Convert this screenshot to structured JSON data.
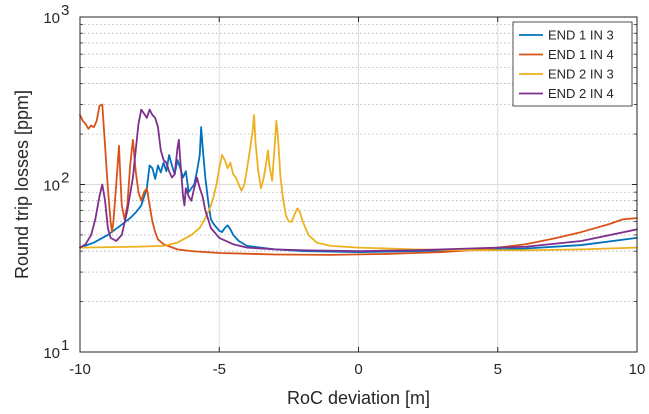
{
  "chart_data": {
    "type": "line",
    "title": "",
    "xlabel": "RoC deviation [m]",
    "ylabel": "Round trip losses [ppm]",
    "xlim": [
      -10,
      10
    ],
    "ylim": [
      10,
      1000
    ],
    "yscale": "log",
    "grid": true,
    "legend_position": "top-right",
    "x_ticks": [
      -10,
      -5,
      0,
      5,
      10
    ],
    "x_tick_labels": [
      "-10",
      "-5",
      "0",
      "5",
      "10"
    ],
    "y_ticks": [
      10,
      100,
      1000
    ],
    "y_tick_labels": [
      {
        "base": "10",
        "exp": "1"
      },
      {
        "base": "10",
        "exp": "2"
      },
      {
        "base": "10",
        "exp": "3"
      }
    ],
    "series": [
      {
        "name": "END 1 IN 3",
        "color": "#0072BD",
        "points": [
          [
            -10,
            42
          ],
          [
            -9.5,
            45
          ],
          [
            -9,
            50
          ],
          [
            -8.6,
            56
          ],
          [
            -8.2,
            63
          ],
          [
            -8,
            68
          ],
          [
            -7.8,
            75
          ],
          [
            -7.6,
            95
          ],
          [
            -7.5,
            130
          ],
          [
            -7.4,
            125
          ],
          [
            -7.3,
            108
          ],
          [
            -7.2,
            130
          ],
          [
            -7.1,
            118
          ],
          [
            -7,
            135
          ],
          [
            -6.9,
            120
          ],
          [
            -6.8,
            150
          ],
          [
            -6.7,
            130
          ],
          [
            -6.6,
            115
          ],
          [
            -6.5,
            140
          ],
          [
            -6.4,
            125
          ],
          [
            -6.3,
            110
          ],
          [
            -6.2,
            120
          ],
          [
            -6.1,
            90
          ],
          [
            -6,
            95
          ],
          [
            -5.9,
            100
          ],
          [
            -5.8,
            120
          ],
          [
            -5.7,
            150
          ],
          [
            -5.65,
            220
          ],
          [
            -5.6,
            170
          ],
          [
            -5.5,
            110
          ],
          [
            -5.4,
            80
          ],
          [
            -5.3,
            62
          ],
          [
            -5.2,
            58
          ],
          [
            -5,
            53
          ],
          [
            -4.9,
            52
          ],
          [
            -4.8,
            55
          ],
          [
            -4.7,
            57
          ],
          [
            -4.6,
            54
          ],
          [
            -4.5,
            50
          ],
          [
            -4.3,
            46
          ],
          [
            -4,
            43
          ],
          [
            -3,
            41
          ],
          [
            -2,
            40
          ],
          [
            0,
            39.5
          ],
          [
            2,
            40
          ],
          [
            4,
            40.5
          ],
          [
            6,
            41.5
          ],
          [
            8,
            43.5
          ],
          [
            10,
            48
          ]
        ]
      },
      {
        "name": "END 1 IN 4",
        "color": "#D95319",
        "points": [
          [
            -10,
            260
          ],
          [
            -9.9,
            240
          ],
          [
            -9.8,
            230
          ],
          [
            -9.7,
            215
          ],
          [
            -9.6,
            225
          ],
          [
            -9.5,
            220
          ],
          [
            -9.4,
            240
          ],
          [
            -9.3,
            295
          ],
          [
            -9.2,
            300
          ],
          [
            -9.1,
            170
          ],
          [
            -9,
            95
          ],
          [
            -8.9,
            60
          ],
          [
            -8.85,
            52
          ],
          [
            -8.8,
            60
          ],
          [
            -8.7,
            100
          ],
          [
            -8.6,
            170
          ],
          [
            -8.55,
            110
          ],
          [
            -8.5,
            75
          ],
          [
            -8.4,
            62
          ],
          [
            -8.3,
            75
          ],
          [
            -8.2,
            130
          ],
          [
            -8.1,
            185
          ],
          [
            -8,
            120
          ],
          [
            -7.9,
            90
          ],
          [
            -7.8,
            80
          ],
          [
            -7.7,
            90
          ],
          [
            -7.6,
            95
          ],
          [
            -7.5,
            75
          ],
          [
            -7.4,
            60
          ],
          [
            -7.3,
            52
          ],
          [
            -7.2,
            47
          ],
          [
            -7,
            44
          ],
          [
            -6.5,
            41
          ],
          [
            -6,
            40
          ],
          [
            -5,
            39
          ],
          [
            -3,
            38.2
          ],
          [
            -1,
            38
          ],
          [
            1,
            38.5
          ],
          [
            2,
            39
          ],
          [
            3,
            39.5
          ],
          [
            4,
            40.5
          ],
          [
            5,
            42
          ],
          [
            6,
            44
          ],
          [
            7,
            47.5
          ],
          [
            8,
            52
          ],
          [
            9,
            58
          ],
          [
            9.5,
            62
          ],
          [
            10,
            63
          ]
        ]
      },
      {
        "name": "END 2 IN 3",
        "color": "#EDB120",
        "points": [
          [
            -10,
            42
          ],
          [
            -8,
            42.5
          ],
          [
            -7,
            43
          ],
          [
            -6.5,
            45
          ],
          [
            -6,
            50
          ],
          [
            -5.7,
            55
          ],
          [
            -5.5,
            63
          ],
          [
            -5.3,
            75
          ],
          [
            -5.2,
            85
          ],
          [
            -5.1,
            100
          ],
          [
            -5,
            125
          ],
          [
            -4.9,
            150
          ],
          [
            -4.8,
            140
          ],
          [
            -4.7,
            125
          ],
          [
            -4.6,
            135
          ],
          [
            -4.5,
            115
          ],
          [
            -4.4,
            110
          ],
          [
            -4.3,
            100
          ],
          [
            -4.2,
            92
          ],
          [
            -4.1,
            100
          ],
          [
            -4,
            125
          ],
          [
            -3.9,
            160
          ],
          [
            -3.8,
            210
          ],
          [
            -3.75,
            260
          ],
          [
            -3.7,
            180
          ],
          [
            -3.6,
            120
          ],
          [
            -3.5,
            95
          ],
          [
            -3.4,
            110
          ],
          [
            -3.3,
            140
          ],
          [
            -3.25,
            160
          ],
          [
            -3.2,
            130
          ],
          [
            -3.1,
            105
          ],
          [
            -3,
            180
          ],
          [
            -2.95,
            240
          ],
          [
            -2.9,
            200
          ],
          [
            -2.8,
            110
          ],
          [
            -2.7,
            80
          ],
          [
            -2.6,
            65
          ],
          [
            -2.5,
            60
          ],
          [
            -2.4,
            60
          ],
          [
            -2.3,
            66
          ],
          [
            -2.2,
            72
          ],
          [
            -2.1,
            68
          ],
          [
            -2,
            60
          ],
          [
            -1.8,
            50
          ],
          [
            -1.5,
            45
          ],
          [
            -1,
            43
          ],
          [
            0,
            42
          ],
          [
            2,
            41
          ],
          [
            4,
            40.5
          ],
          [
            6,
            40.5
          ],
          [
            8,
            41
          ],
          [
            10,
            42
          ]
        ]
      },
      {
        "name": "END 2 IN 4",
        "color": "#7E2F8E",
        "points": [
          [
            -10,
            42
          ],
          [
            -9.8,
            44
          ],
          [
            -9.6,
            50
          ],
          [
            -9.45,
            62
          ],
          [
            -9.3,
            85
          ],
          [
            -9.2,
            100
          ],
          [
            -9.1,
            80
          ],
          [
            -9,
            55
          ],
          [
            -8.9,
            48
          ],
          [
            -8.7,
            46
          ],
          [
            -8.5,
            50
          ],
          [
            -8.3,
            70
          ],
          [
            -8.1,
            110
          ],
          [
            -8,
            160
          ],
          [
            -7.9,
            230
          ],
          [
            -7.8,
            280
          ],
          [
            -7.7,
            265
          ],
          [
            -7.6,
            250
          ],
          [
            -7.5,
            280
          ],
          [
            -7.4,
            260
          ],
          [
            -7.3,
            250
          ],
          [
            -7.2,
            220
          ],
          [
            -7.1,
            160
          ],
          [
            -7,
            140
          ],
          [
            -6.9,
            135
          ],
          [
            -6.8,
            120
          ],
          [
            -6.7,
            110
          ],
          [
            -6.6,
            115
          ],
          [
            -6.5,
            165
          ],
          [
            -6.45,
            185
          ],
          [
            -6.4,
            140
          ],
          [
            -6.3,
            85
          ],
          [
            -6.25,
            75
          ],
          [
            -6.2,
            95
          ],
          [
            -6.1,
            85
          ],
          [
            -6,
            80
          ],
          [
            -5.9,
            95
          ],
          [
            -5.8,
            110
          ],
          [
            -5.7,
            95
          ],
          [
            -5.6,
            85
          ],
          [
            -5.5,
            70
          ],
          [
            -5.3,
            55
          ],
          [
            -5,
            48
          ],
          [
            -4.5,
            44
          ],
          [
            -4,
            42
          ],
          [
            -3,
            41
          ],
          [
            -2,
            40.5
          ],
          [
            0,
            40
          ],
          [
            2,
            40.5
          ],
          [
            4,
            41.5
          ],
          [
            6,
            42.5
          ],
          [
            8,
            46
          ],
          [
            10,
            54
          ]
        ]
      }
    ]
  }
}
